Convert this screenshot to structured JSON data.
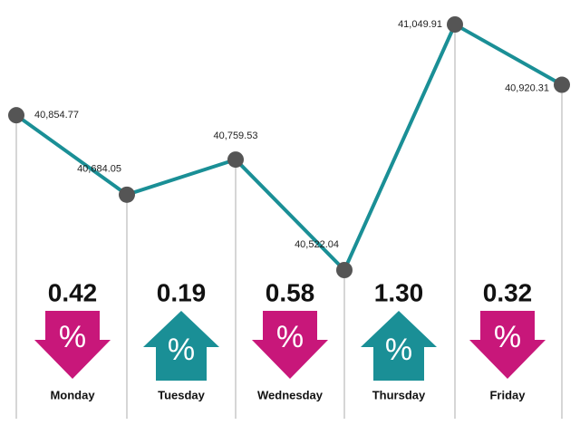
{
  "chart_data": {
    "type": "line",
    "values": [
      40854.77,
      40684.05,
      40759.53,
      40522.04,
      41049.91,
      40920.31
    ],
    "value_labels": [
      "40,854.77",
      "40,684.05",
      "40,759.53",
      "40,522.04",
      "41,049.91",
      "40,920.31"
    ],
    "color": "#1a8f96",
    "marker_color": "#555555",
    "changes": {
      "categories": [
        "Monday",
        "Tuesday",
        "Wednesday",
        "Thursday",
        "Friday"
      ],
      "values": [
        0.42,
        0.19,
        0.58,
        1.3,
        0.32
      ],
      "value_labels": [
        "0.42",
        "0.19",
        "0.58",
        "1.30",
        "0.32"
      ],
      "directions": [
        "down",
        "up",
        "down",
        "up",
        "down"
      ],
      "symbol": "%",
      "colors": {
        "down": "#c8177a",
        "up": "#1a8f96"
      }
    }
  }
}
